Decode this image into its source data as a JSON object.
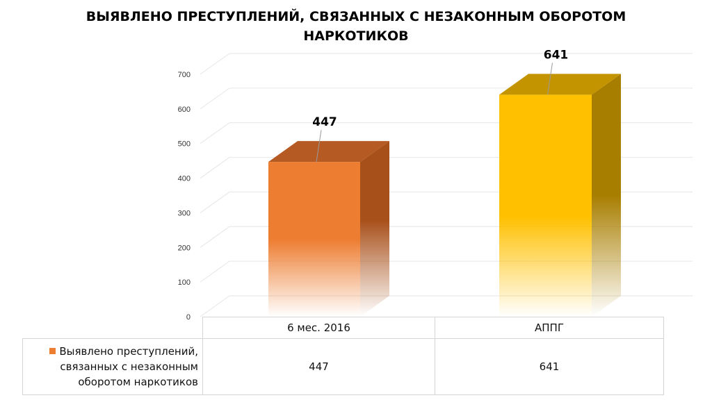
{
  "title": {
    "line1": "ВЫЯВЛЕНО ПРЕСТУПЛЕНИЙ, СВЯЗАННЫХ С НЕЗАКОННЫМ ОБОРОТОМ",
    "line2": "НАРКОТИКОВ"
  },
  "chart_data": {
    "type": "bar",
    "title": "ВЫЯВЛЕНО ПРЕСТУПЛЕНИЙ, СВЯЗАННЫХ С НЕЗАКОННЫМ ОБОРОТОМ НАРКОТИКОВ",
    "categories": [
      "6 мес. 2016",
      "АППГ"
    ],
    "values": [
      447,
      641
    ],
    "data_labels": [
      "447",
      "641"
    ],
    "series": [
      {
        "name": "Выявлено преступлений, связанных с незаконным оборотом наркотиков",
        "values": [
          447,
          641
        ]
      }
    ],
    "ylim": [
      0,
      700
    ],
    "yticks": [
      0,
      100,
      200,
      300,
      400,
      500,
      600,
      700
    ],
    "ytick_labels": [
      "0",
      "100",
      "200",
      "300",
      "400",
      "500",
      "600",
      "700"
    ],
    "bar_colors": [
      "#ED7D31",
      "#FFC000"
    ],
    "style": "3d",
    "grid": true,
    "legend": "data-table"
  },
  "table": {
    "legend_lines": [
      "Выявлено преступлений,",
      "связанных с незаконным",
      "оборотом наркотиков"
    ],
    "legend_color": "#ED7D31",
    "headers": [
      "6 мес. 2016",
      "АППГ"
    ],
    "values": [
      "447",
      "641"
    ]
  }
}
